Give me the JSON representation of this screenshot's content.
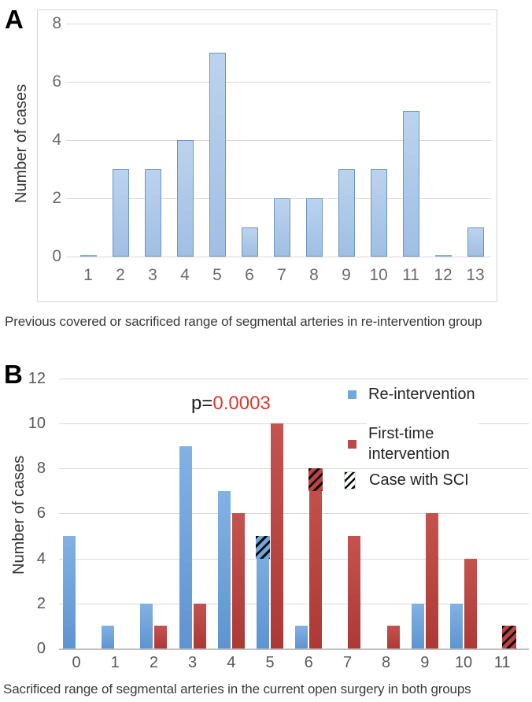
{
  "figure": {
    "panel_a_label": "A",
    "panel_b_label": "B"
  },
  "chart_data": [
    {
      "type": "bar",
      "panel": "A",
      "title": "",
      "categories": [
        1,
        2,
        3,
        4,
        5,
        6,
        7,
        8,
        9,
        10,
        11,
        12,
        13
      ],
      "values": [
        0,
        3,
        3,
        4,
        7,
        1,
        2,
        2,
        3,
        3,
        5,
        0,
        1
      ],
      "xlabel": "Previous covered or sacrificed range of segmental arteries in re-intervention group",
      "ylabel": "Number of cases",
      "ylim": [
        0,
        8
      ],
      "yticks": [
        0,
        2,
        4,
        6,
        8
      ],
      "grid": true,
      "bar_fill": "#aac7e8",
      "bar_border": "#6d95c3",
      "grid_color": "#d9d9d9"
    },
    {
      "type": "bar",
      "panel": "B",
      "title": "",
      "categories": [
        0,
        1,
        2,
        3,
        4,
        5,
        6,
        7,
        8,
        9,
        10,
        11
      ],
      "series": [
        {
          "name": "Re-intervention",
          "color": "#6fa8dc",
          "values": [
            5,
            1,
            2,
            9,
            7,
            5,
            1,
            0,
            0,
            2,
            2,
            0
          ]
        },
        {
          "name": "First-time intervention",
          "color": "#bf4340",
          "values": [
            0,
            0,
            1,
            2,
            6,
            10,
            8,
            5,
            1,
            6,
            4,
            1
          ]
        }
      ],
      "sci_segments": [
        {
          "series": "Re-intervention",
          "category": 5,
          "from": 4,
          "to": 5
        },
        {
          "series": "First-time intervention",
          "category": 6,
          "from": 7,
          "to": 8
        },
        {
          "series": "First-time intervention",
          "category": 11,
          "from": 0,
          "to": 1
        }
      ],
      "annotation": {
        "prefix": "p=",
        "value": "0.0003",
        "value_color": "#dc392e"
      },
      "legend": {
        "position": "upper-right",
        "items": [
          {
            "swatch": "blue-square",
            "label": "Re-intervention"
          },
          {
            "swatch": "red-square",
            "label": "First-time intervention"
          },
          {
            "swatch": "black-hatch-square",
            "label": "Case with SCI"
          }
        ]
      },
      "xlabel": "Sacrificed range of segmental arteries in the current open surgery in both groups",
      "ylabel": "Number of cases",
      "ylim": [
        0,
        12
      ],
      "yticks": [
        0,
        2,
        4,
        6,
        8,
        10,
        12
      ],
      "grid": true,
      "grid_color": "#d9d9d9"
    }
  ]
}
